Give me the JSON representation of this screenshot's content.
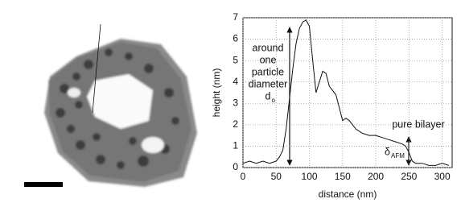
{
  "chart_data": {
    "type": "line",
    "xlabel": "distance (nm)",
    "ylabel": "height (nm)",
    "x": [
      0,
      10,
      20,
      30,
      40,
      50,
      55,
      60,
      65,
      70,
      75,
      80,
      85,
      90,
      95,
      100,
      105,
      110,
      115,
      120,
      125,
      130,
      135,
      140,
      145,
      150,
      155,
      160,
      170,
      180,
      190,
      200,
      210,
      220,
      230,
      240,
      245,
      250,
      255,
      260,
      270,
      280,
      290,
      300,
      310
    ],
    "values": [
      0.2,
      0.3,
      0.2,
      0.3,
      0.2,
      0.3,
      0.5,
      0.8,
      1.8,
      3.2,
      4.6,
      5.8,
      6.5,
      6.8,
      6.9,
      6.6,
      5.0,
      3.5,
      4.0,
      4.5,
      4.4,
      3.8,
      3.6,
      3.4,
      2.8,
      2.2,
      2.3,
      2.2,
      1.8,
      1.6,
      1.5,
      1.5,
      1.4,
      1.3,
      1.2,
      1.1,
      1.0,
      0.7,
      0.3,
      0.2,
      0.2,
      0.1,
      0.1,
      0.2,
      0.1
    ],
    "color": "#111111",
    "xlim": [
      0,
      315
    ],
    "xticks": [
      0,
      50,
      100,
      150,
      200,
      250,
      300
    ],
    "ylim": [
      0,
      7
    ],
    "yticks": [
      0,
      1,
      2,
      3,
      4,
      5,
      6,
      7
    ],
    "grid": true,
    "annotations": [
      {
        "lines": [
          "around",
          "one",
          "particle",
          "diameter",
          "d"
        ],
        "subscript": "o"
      },
      {
        "lines": [
          "pure bilayer"
        ]
      },
      {
        "lines": [
          "δ"
        ],
        "subscript": "AFM"
      }
    ]
  }
}
